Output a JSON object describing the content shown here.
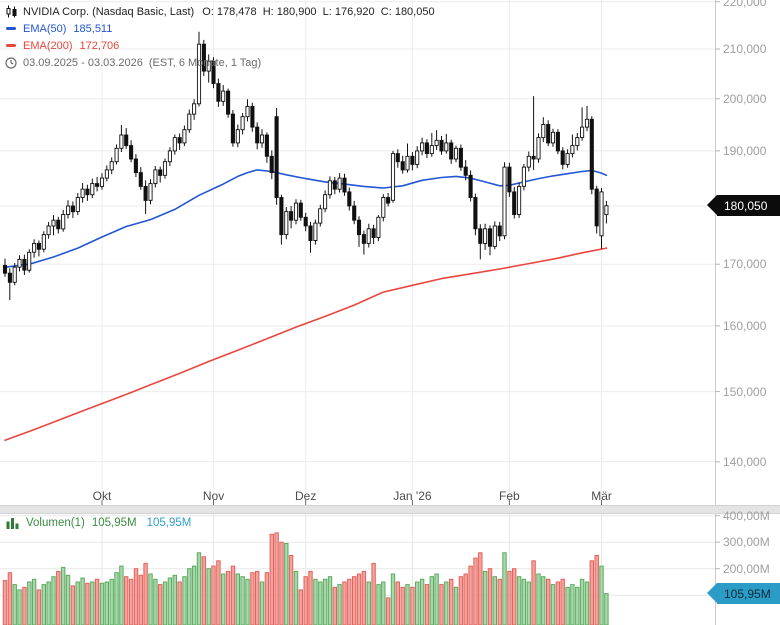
{
  "header": {
    "title": "NVIDIA Corp. (Nasdaq Basic, Last)",
    "ohlc": "O: 178,478  H: 180,900  L: 176,920  C: 180,050",
    "ema50": {
      "label": "EMA(50)",
      "value": "185,511",
      "color": "#2356d4"
    },
    "ema200": {
      "label": "EMA(200)",
      "value": "172,706",
      "color": "#e8463e"
    },
    "range": "03.09.2025 - 03.03.2026",
    "timeframe": "(EST, 6 Monate, 1 Tag)"
  },
  "price_axis": {
    "labels": [
      "220,000",
      "210,000",
      "200,000",
      "190,000",
      "170,000",
      "160,000",
      "150,000",
      "140,000"
    ],
    "badge": "180,050"
  },
  "volume_pane": {
    "legend": {
      "label": "Volumen(1)",
      "value1": "105,95M",
      "value2": "105,95M"
    },
    "labels": [
      "400,00M",
      "300,00M",
      "200,00M"
    ],
    "badge": "105,95M"
  },
  "chart_data": {
    "type": "candlestick",
    "scale": "log",
    "interval": "1 Tag",
    "range": "03.09.2025 - 03.03.2026",
    "volume_unit": "M",
    "price_gridlines": [
      220,
      210,
      200,
      190,
      180,
      170,
      160,
      150,
      140
    ],
    "volume_gridlines": [
      400,
      300,
      200,
      100
    ],
    "month_ticks": [
      {
        "label": "Okt",
        "month": "2025-10"
      },
      {
        "label": "Nov",
        "month": "2025-11"
      },
      {
        "label": "Dez",
        "month": "2025-12"
      },
      {
        "label": "Jan '26",
        "month": "2026-01"
      },
      {
        "label": "Feb",
        "month": "2026-02"
      },
      {
        "label": "Mär",
        "month": "2026-03"
      }
    ],
    "colors": {
      "candle": "#111111",
      "grid": "#ececec",
      "vol_up_fill": "#a9d7ab",
      "vol_up_stroke": "#5aab60",
      "vol_down_fill": "#f4a29d",
      "vol_down_stroke": "#e2635c"
    },
    "ema50_points": [
      [
        0,
        169.5
      ],
      [
        5,
        170.0
      ],
      [
        10,
        171.2
      ],
      [
        15,
        172.7
      ],
      [
        20,
        174.6
      ],
      [
        25,
        176.4
      ],
      [
        30,
        177.6
      ],
      [
        35,
        179.4
      ],
      [
        40,
        181.9
      ],
      [
        45,
        183.9
      ],
      [
        48,
        185.3
      ],
      [
        50,
        186.0
      ],
      [
        52,
        186.5
      ],
      [
        55,
        186.2
      ],
      [
        58,
        185.6
      ],
      [
        62,
        184.9
      ],
      [
        66,
        184.3
      ],
      [
        70,
        183.9
      ],
      [
        74,
        183.5
      ],
      [
        78,
        183.2
      ],
      [
        82,
        183.6
      ],
      [
        86,
        184.6
      ],
      [
        90,
        185.1
      ],
      [
        93,
        185.3
      ],
      [
        96,
        185.0
      ],
      [
        99,
        184.3
      ],
      [
        102,
        183.6
      ],
      [
        104,
        183.7
      ],
      [
        107,
        184.3
      ],
      [
        110,
        184.9
      ],
      [
        113,
        185.4
      ],
      [
        116,
        185.8
      ],
      [
        119,
        186.2
      ],
      [
        121,
        186.4
      ],
      [
        123,
        185.9
      ],
      [
        124,
        185.511
      ]
    ],
    "ema200_points": [
      [
        0,
        143.0
      ],
      [
        6,
        144.5
      ],
      [
        12,
        146.1
      ],
      [
        18,
        147.7
      ],
      [
        24,
        149.3
      ],
      [
        30,
        151.0
      ],
      [
        36,
        152.7
      ],
      [
        42,
        154.5
      ],
      [
        48,
        156.2
      ],
      [
        54,
        158.0
      ],
      [
        60,
        159.8
      ],
      [
        66,
        161.5
      ],
      [
        72,
        163.3
      ],
      [
        78,
        165.4
      ],
      [
        84,
        166.5
      ],
      [
        90,
        167.6
      ],
      [
        96,
        168.4
      ],
      [
        102,
        169.2
      ],
      [
        108,
        170.1
      ],
      [
        114,
        171.0
      ],
      [
        119,
        171.9
      ],
      [
        124,
        172.706
      ]
    ],
    "candles": [
      [
        "2025-09-03",
        169.8,
        170.9,
        167.9,
        168.5,
        155
      ],
      [
        "2025-09-04",
        168.5,
        169.3,
        164.1,
        167.0,
        185
      ],
      [
        "2025-09-05",
        167.0,
        170.2,
        166.5,
        169.5,
        140
      ],
      [
        "2025-09-08",
        169.5,
        171.5,
        168.8,
        170.8,
        120
      ],
      [
        "2025-09-09",
        170.8,
        171.6,
        168.2,
        169.0,
        130
      ],
      [
        "2025-09-10",
        169.0,
        172.5,
        168.6,
        172.0,
        150
      ],
      [
        "2025-09-11",
        172.0,
        174.2,
        171.1,
        173.5,
        160
      ],
      [
        "2025-09-12",
        173.5,
        174.0,
        171.3,
        172.5,
        120
      ],
      [
        "2025-09-15",
        172.5,
        175.6,
        172.0,
        175.0,
        140
      ],
      [
        "2025-09-16",
        175.0,
        177.2,
        174.3,
        176.5,
        150
      ],
      [
        "2025-09-17",
        176.5,
        178.4,
        174.9,
        177.5,
        170
      ],
      [
        "2025-09-18",
        177.5,
        178.1,
        175.2,
        176.0,
        190
      ],
      [
        "2025-09-19",
        176.0,
        179.3,
        175.5,
        178.5,
        205
      ],
      [
        "2025-09-22",
        178.5,
        181.0,
        177.8,
        180.0,
        175
      ],
      [
        "2025-09-23",
        180.0,
        180.8,
        177.9,
        179.0,
        135
      ],
      [
        "2025-09-24",
        179.0,
        182.3,
        178.4,
        181.5,
        150
      ],
      [
        "2025-09-25",
        181.5,
        184.1,
        180.6,
        183.0,
        165
      ],
      [
        "2025-09-26",
        183.0,
        183.8,
        180.9,
        182.0,
        145
      ],
      [
        "2025-09-29",
        182.0,
        184.9,
        181.4,
        184.0,
        150
      ],
      [
        "2025-09-30",
        184.0,
        185.2,
        182.6,
        183.5,
        160
      ],
      [
        "2025-10-01",
        183.5,
        185.9,
        182.9,
        185.0,
        145
      ],
      [
        "2025-10-02",
        185.0,
        187.3,
        184.4,
        186.5,
        150
      ],
      [
        "2025-10-03",
        186.5,
        188.8,
        185.7,
        188.0,
        160
      ],
      [
        "2025-10-06",
        188.0,
        191.2,
        187.5,
        190.5,
        185
      ],
      [
        "2025-10-07",
        190.5,
        194.9,
        189.8,
        193.0,
        210
      ],
      [
        "2025-10-08",
        193.0,
        194.3,
        190.4,
        191.0,
        170
      ],
      [
        "2025-10-09",
        191.0,
        192.0,
        187.9,
        188.5,
        160
      ],
      [
        "2025-10-10",
        188.5,
        189.4,
        185.2,
        186.0,
        200
      ],
      [
        "2025-10-13",
        186.0,
        187.0,
        182.9,
        183.5,
        175
      ],
      [
        "2025-10-14",
        183.5,
        184.6,
        178.6,
        181.0,
        220
      ],
      [
        "2025-10-15",
        181.0,
        184.8,
        180.3,
        184.0,
        180
      ],
      [
        "2025-10-16",
        184.0,
        187.2,
        183.3,
        186.5,
        160
      ],
      [
        "2025-10-17",
        186.5,
        187.1,
        184.2,
        185.5,
        140
      ],
      [
        "2025-10-20",
        185.5,
        188.6,
        184.9,
        188.0,
        150
      ],
      [
        "2025-10-21",
        188.0,
        190.7,
        187.2,
        190.0,
        165
      ],
      [
        "2025-10-22",
        190.0,
        193.1,
        189.3,
        192.5,
        175
      ],
      [
        "2025-10-23",
        192.5,
        193.3,
        190.2,
        191.5,
        150
      ],
      [
        "2025-10-24",
        191.5,
        194.8,
        190.9,
        194.0,
        170
      ],
      [
        "2025-10-27",
        194.0,
        197.9,
        193.4,
        197.0,
        200
      ],
      [
        "2025-10-28",
        197.0,
        199.9,
        195.9,
        199.0,
        210
      ],
      [
        "2025-10-29",
        199.0,
        213.6,
        198.5,
        211.0,
        260
      ],
      [
        "2025-10-30",
        211.0,
        211.9,
        204.5,
        205.5,
        245
      ],
      [
        "2025-10-31",
        205.5,
        208.9,
        203.2,
        207.5,
        200
      ],
      [
        "2025-11-03",
        207.5,
        208.3,
        202.1,
        203.0,
        210
      ],
      [
        "2025-11-04",
        203.0,
        204.0,
        198.4,
        199.5,
        230
      ],
      [
        "2025-11-05",
        199.5,
        202.7,
        198.6,
        201.5,
        180
      ],
      [
        "2025-11-06",
        201.5,
        202.0,
        196.3,
        197.0,
        190
      ],
      [
        "2025-11-07",
        197.0,
        197.8,
        190.8,
        191.5,
        210
      ],
      [
        "2025-11-10",
        191.5,
        195.0,
        190.7,
        194.0,
        180
      ],
      [
        "2025-11-11",
        194.0,
        197.2,
        193.1,
        196.5,
        170
      ],
      [
        "2025-11-12",
        196.5,
        199.9,
        195.6,
        198.5,
        160
      ],
      [
        "2025-11-13",
        198.5,
        199.2,
        193.6,
        194.5,
        185
      ],
      [
        "2025-11-14",
        194.5,
        195.4,
        190.3,
        191.5,
        190
      ],
      [
        "2025-11-17",
        191.5,
        194.1,
        190.6,
        193.0,
        150
      ],
      [
        "2025-11-18",
        193.0,
        193.5,
        187.8,
        189.0,
        185
      ],
      [
        "2025-11-19",
        189.0,
        190.1,
        184.8,
        186.0,
        330
      ],
      [
        "2025-11-20",
        196.5,
        198.2,
        180.2,
        181.5,
        335
      ],
      [
        "2025-11-21",
        181.5,
        182.0,
        173.3,
        175.0,
        300
      ],
      [
        "2025-11-24",
        175.0,
        179.8,
        174.2,
        179.0,
        295
      ],
      [
        "2025-11-25",
        179.0,
        180.0,
        176.1,
        177.5,
        250
      ],
      [
        "2025-11-26",
        177.5,
        181.2,
        176.8,
        180.5,
        190
      ],
      [
        "2025-11-28",
        180.5,
        181.1,
        177.4,
        178.0,
        120
      ],
      [
        "2025-12-01",
        178.0,
        178.8,
        175.6,
        176.5,
        170
      ],
      [
        "2025-12-02",
        176.5,
        177.2,
        171.9,
        174.0,
        190
      ],
      [
        "2025-12-03",
        174.0,
        177.6,
        173.3,
        177.0,
        160
      ],
      [
        "2025-12-04",
        177.0,
        180.2,
        176.4,
        179.5,
        150
      ],
      [
        "2025-12-05",
        179.5,
        182.8,
        178.9,
        182.0,
        160
      ],
      [
        "2025-12-08",
        182.0,
        185.3,
        181.3,
        184.5,
        170
      ],
      [
        "2025-12-09",
        184.5,
        185.2,
        182.1,
        183.0,
        130
      ],
      [
        "2025-12-10",
        183.0,
        185.9,
        182.4,
        185.0,
        140
      ],
      [
        "2025-12-11",
        185.0,
        185.8,
        181.8,
        182.5,
        150
      ],
      [
        "2025-12-12",
        182.5,
        183.3,
        179.2,
        180.0,
        160
      ],
      [
        "2025-12-15",
        180.0,
        180.9,
        176.8,
        177.5,
        170
      ],
      [
        "2025-12-16",
        177.5,
        178.2,
        172.9,
        175.0,
        180
      ],
      [
        "2025-12-17",
        175.0,
        175.7,
        171.6,
        173.5,
        190
      ],
      [
        "2025-12-18",
        173.5,
        176.9,
        172.8,
        176.0,
        150
      ],
      [
        "2025-12-19",
        176.0,
        176.7,
        173.4,
        174.5,
        220
      ],
      [
        "2025-12-22",
        174.5,
        178.4,
        173.9,
        178.0,
        140
      ],
      [
        "2025-12-23",
        178.0,
        182.1,
        177.3,
        181.5,
        150
      ],
      [
        "2025-12-24",
        181.5,
        182.3,
        179.9,
        180.5,
        90
      ],
      [
        "2025-12-26",
        181.0,
        190.0,
        180.6,
        189.5,
        180
      ],
      [
        "2025-12-29",
        189.5,
        190.3,
        186.9,
        188.0,
        150
      ],
      [
        "2025-12-30",
        188.0,
        189.1,
        185.8,
        186.5,
        130
      ],
      [
        "2025-12-31",
        186.5,
        191.4,
        186.0,
        189.0,
        140
      ],
      [
        "2026-01-02",
        189.0,
        189.8,
        186.4,
        187.5,
        130
      ],
      [
        "2026-01-05",
        187.5,
        190.9,
        186.8,
        190.0,
        150
      ],
      [
        "2026-01-06",
        190.0,
        192.5,
        189.2,
        191.5,
        160
      ],
      [
        "2026-01-07",
        191.5,
        192.2,
        188.7,
        189.5,
        140
      ],
      [
        "2026-01-08",
        189.5,
        193.4,
        188.9,
        191.0,
        170
      ],
      [
        "2026-01-09",
        191.0,
        193.9,
        190.2,
        192.0,
        180
      ],
      [
        "2026-01-12",
        192.0,
        192.8,
        189.3,
        190.0,
        140
      ],
      [
        "2026-01-13",
        190.0,
        193.2,
        189.5,
        191.5,
        150
      ],
      [
        "2026-01-14",
        191.5,
        192.1,
        187.6,
        188.5,
        160
      ],
      [
        "2026-01-15",
        188.5,
        191.0,
        187.9,
        190.5,
        130
      ],
      [
        "2026-01-16",
        190.5,
        191.2,
        186.3,
        187.0,
        170
      ],
      [
        "2026-01-20",
        187.0,
        188.3,
        184.6,
        185.5,
        180
      ],
      [
        "2026-01-21",
        185.5,
        186.4,
        180.8,
        181.5,
        210
      ],
      [
        "2026-01-22",
        181.5,
        182.2,
        174.9,
        176.0,
        240
      ],
      [
        "2026-01-23",
        176.0,
        176.8,
        170.8,
        173.5,
        260
      ],
      [
        "2026-01-26",
        173.5,
        176.9,
        172.4,
        176.0,
        190
      ],
      [
        "2026-01-27",
        176.0,
        176.6,
        171.5,
        173.0,
        200
      ],
      [
        "2026-01-28",
        173.0,
        177.3,
        172.5,
        176.5,
        170
      ],
      [
        "2026-01-29",
        176.5,
        177.2,
        173.9,
        174.8,
        160
      ],
      [
        "2026-01-30",
        174.8,
        187.9,
        174.2,
        187.0,
        260
      ],
      [
        "2026-02-02",
        187.0,
        187.8,
        181.6,
        182.5,
        190
      ],
      [
        "2026-02-03",
        182.5,
        183.4,
        177.8,
        178.5,
        200
      ],
      [
        "2026-02-04",
        178.5,
        184.2,
        177.9,
        183.5,
        170
      ],
      [
        "2026-02-05",
        183.5,
        187.6,
        182.8,
        187.0,
        160
      ],
      [
        "2026-02-06",
        187.0,
        189.9,
        186.2,
        189.0,
        150
      ],
      [
        "2026-02-09",
        189.0,
        200.5,
        186.5,
        188.5,
        230
      ],
      [
        "2026-02-10",
        188.5,
        193.3,
        187.8,
        192.5,
        180
      ],
      [
        "2026-02-11",
        192.5,
        196.4,
        191.7,
        195.0,
        170
      ],
      [
        "2026-02-12",
        195.0,
        195.8,
        190.9,
        191.5,
        160
      ],
      [
        "2026-02-13",
        191.5,
        194.2,
        190.8,
        193.5,
        140
      ],
      [
        "2026-02-17",
        193.5,
        194.1,
        189.4,
        190.0,
        150
      ],
      [
        "2026-02-18",
        190.0,
        190.7,
        186.6,
        187.5,
        160
      ],
      [
        "2026-02-19",
        187.5,
        190.3,
        186.9,
        189.5,
        130
      ],
      [
        "2026-02-20",
        189.5,
        193.1,
        188.8,
        191.0,
        140
      ],
      [
        "2026-02-23",
        191.0,
        193.4,
        190.1,
        192.5,
        130
      ],
      [
        "2026-02-24",
        192.5,
        198.3,
        191.9,
        194.5,
        160
      ],
      [
        "2026-02-25",
        194.5,
        198.6,
        193.7,
        196.0,
        150
      ],
      [
        "2026-02-26",
        196.0,
        196.6,
        182.1,
        183.0,
        230
      ],
      [
        "2026-02-27",
        183.0,
        183.6,
        175.2,
        176.5,
        250
      ],
      [
        "2026-03-02",
        174.8,
        183.2,
        172.6,
        182.5,
        210
      ],
      [
        "2026-03-03",
        178.478,
        180.9,
        176.92,
        180.05,
        105.95
      ]
    ]
  }
}
